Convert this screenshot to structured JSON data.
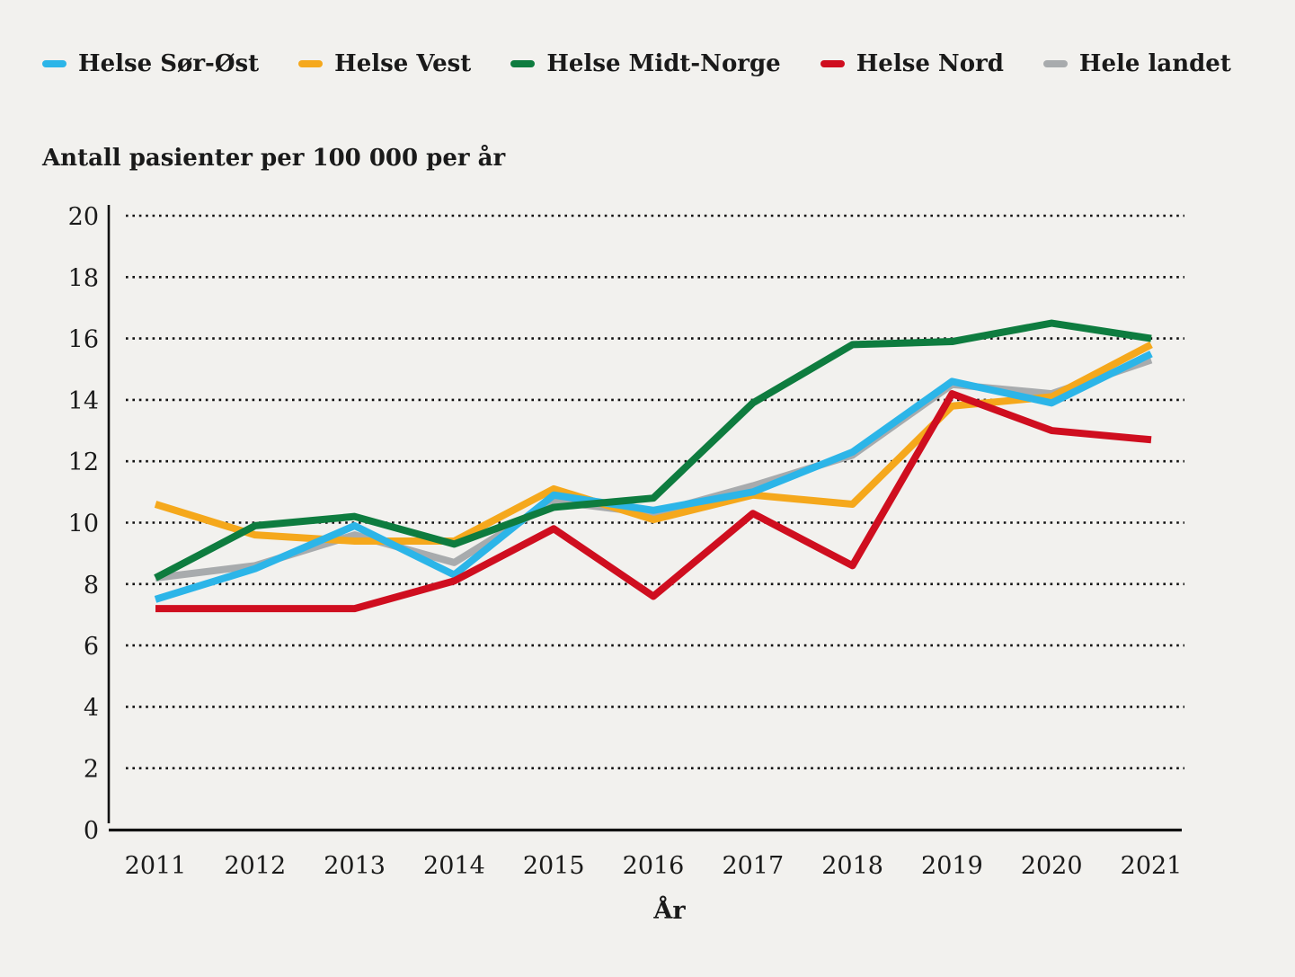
{
  "page": {
    "background_color": "#f2f1ee",
    "text_color": "#1a1a1a",
    "axis_color": "#111111"
  },
  "chart_data": {
    "type": "line",
    "title": "Antall pasienter per 100 000 per år",
    "xlabel": "År",
    "ylabel": "Antall pasienter per 100 000 per år",
    "x": [
      2011,
      2012,
      2013,
      2014,
      2015,
      2016,
      2017,
      2018,
      2019,
      2020,
      2021
    ],
    "series": [
      {
        "name": "Helse Sør-Øst",
        "color": "#2cb5e8",
        "values": [
          7.5,
          8.5,
          9.9,
          8.3,
          10.9,
          10.4,
          11.0,
          12.3,
          14.6,
          13.9,
          15.5
        ]
      },
      {
        "name": "Helse Vest",
        "color": "#f5a81c",
        "values": [
          10.6,
          9.6,
          9.4,
          9.4,
          11.1,
          10.1,
          10.9,
          10.6,
          13.8,
          14.1,
          15.8
        ]
      },
      {
        "name": "Helse Midt-Norge",
        "color": "#0e7c3f",
        "values": [
          8.2,
          9.9,
          10.2,
          9.3,
          10.5,
          10.8,
          13.9,
          15.8,
          15.9,
          16.5,
          16.0
        ]
      },
      {
        "name": "Helse Nord",
        "color": "#cf0e1f",
        "values": [
          7.2,
          7.2,
          7.2,
          8.1,
          9.8,
          7.6,
          10.3,
          8.6,
          14.2,
          13.0,
          12.7
        ]
      },
      {
        "name": "Hele landet",
        "color": "#a8abad",
        "values": [
          8.2,
          8.6,
          9.6,
          8.7,
          10.7,
          10.3,
          11.2,
          12.2,
          14.5,
          14.2,
          15.3
        ]
      }
    ],
    "ylim": [
      0,
      20
    ],
    "ytick_step": 2,
    "grid": "horizontal-dotted",
    "gridline_color": "#111111",
    "line_width": 8,
    "legend_position": "top-left",
    "draw_order": [
      "Hele landet",
      "Helse Vest",
      "Helse Sør-Øst",
      "Helse Nord",
      "Helse Midt-Norge"
    ]
  }
}
